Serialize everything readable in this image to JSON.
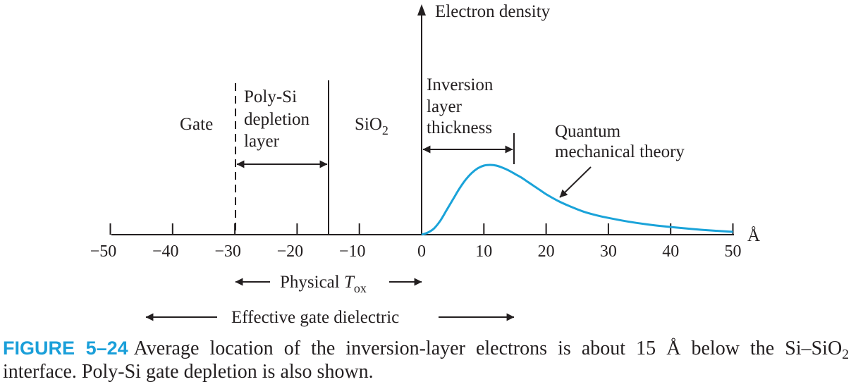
{
  "axis": {
    "y_label": "Electron density",
    "unit": "Å",
    "x_ticks": [
      "−50",
      "−40",
      "−30",
      "−20",
      "−10",
      "0",
      "10",
      "20",
      "30",
      "40",
      "50"
    ]
  },
  "regions": {
    "gate": "Gate",
    "poly_depletion": [
      "Poly-Si",
      "depletion",
      "layer"
    ],
    "oxide_main": "SiO",
    "oxide_sub": "2",
    "inversion": [
      "Inversion",
      "layer",
      "thickness"
    ]
  },
  "curve": {
    "label": [
      "Quantum",
      "mechanical theory"
    ],
    "color": "#1aa3d9",
    "points_angstrom": [
      [
        0,
        0
      ],
      [
        1,
        0.03
      ],
      [
        2,
        0.09
      ],
      [
        3,
        0.2
      ],
      [
        4,
        0.35
      ],
      [
        5,
        0.5
      ],
      [
        6,
        0.65
      ],
      [
        7,
        0.78
      ],
      [
        8,
        0.88
      ],
      [
        9,
        0.95
      ],
      [
        10,
        0.99
      ],
      [
        11,
        1.0
      ],
      [
        12,
        0.99
      ],
      [
        13,
        0.96
      ],
      [
        14,
        0.92
      ],
      [
        15,
        0.87
      ],
      [
        16,
        0.82
      ],
      [
        17,
        0.76
      ],
      [
        18,
        0.7
      ],
      [
        19,
        0.64
      ],
      [
        20,
        0.58
      ],
      [
        22,
        0.48
      ],
      [
        24,
        0.4
      ],
      [
        26,
        0.33
      ],
      [
        28,
        0.28
      ],
      [
        30,
        0.24
      ],
      [
        33,
        0.19
      ],
      [
        36,
        0.15
      ],
      [
        40,
        0.11
      ],
      [
        45,
        0.07
      ],
      [
        50,
        0.04
      ]
    ]
  },
  "dimensions": {
    "physical_tox_main": "Physical ",
    "physical_tox_italic": "T",
    "physical_tox_sub": "ox",
    "effective_gate": "Effective gate dielectric"
  },
  "caption": {
    "figure_number": "FIGURE 5–24",
    "text_before_sub": "Average location of the inversion-layer electrons is about 15 Å below the Si–SiO",
    "sub": "2",
    "text_after_sub": " interface. Poly-Si gate depletion is also shown."
  }
}
